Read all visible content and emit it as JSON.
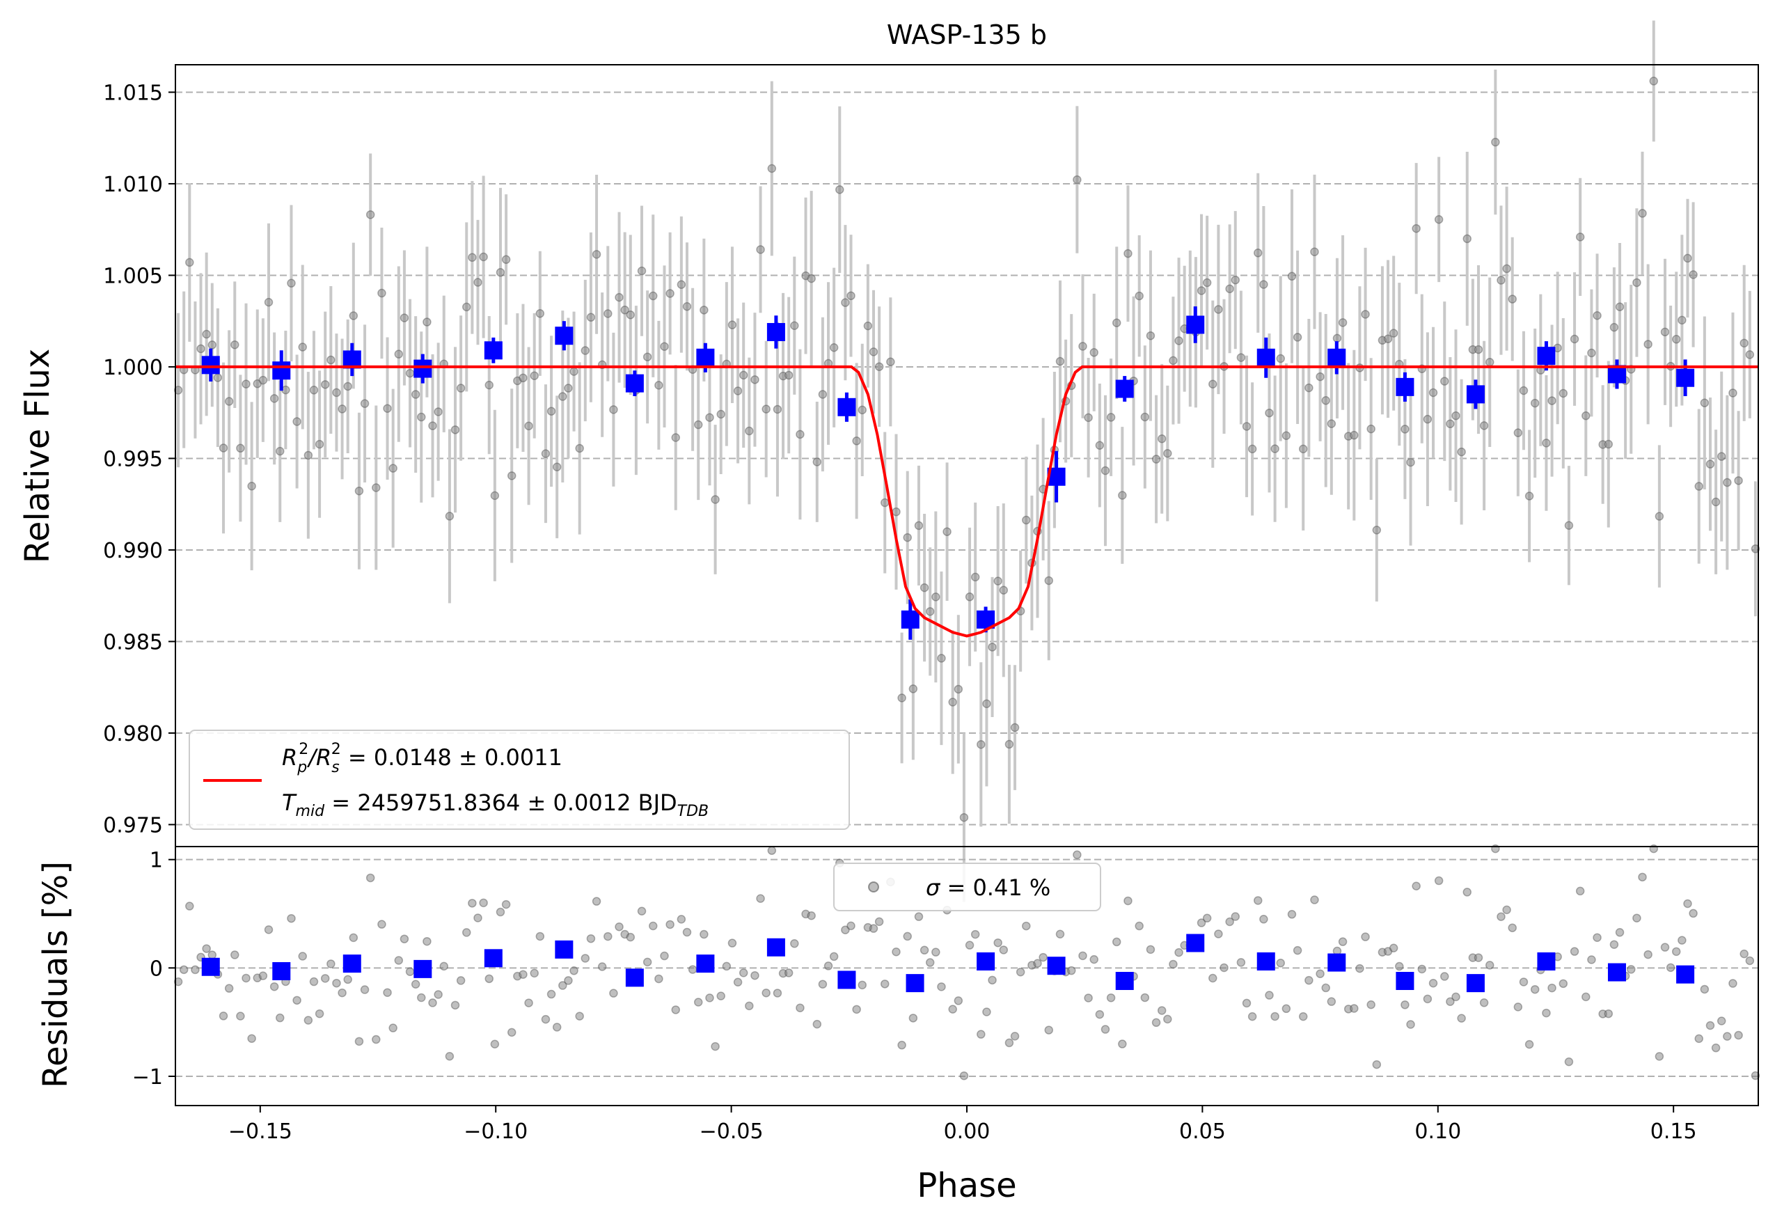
{
  "chart_data": [
    {
      "type": "scatter",
      "title": "WASP-135 b",
      "xlabel": "Phase",
      "ylabel": "Relative Flux",
      "xlim": [
        -0.168,
        0.168
      ],
      "ylim": [
        0.9738,
        1.0165
      ],
      "xticks": [
        -0.15,
        -0.1,
        -0.05,
        0.0,
        0.05,
        0.1,
        0.15
      ],
      "xtick_labels": [
        "−0.15",
        "−0.10",
        "−0.05",
        "0.00",
        "0.05",
        "0.10",
        "0.15"
      ],
      "yticks": [
        0.975,
        0.98,
        0.985,
        0.99,
        0.995,
        1.0,
        1.005,
        1.01,
        1.015
      ],
      "ytick_labels": [
        "0.975",
        "0.980",
        "0.985",
        "0.990",
        "0.995",
        "1.000",
        "1.005",
        "1.010",
        "1.015"
      ],
      "grid": "horizontal dashed",
      "legend": {
        "placement": "lower-left",
        "entries": [
          {
            "label_parts": [
              "R",
              "p",
              "2",
              "/R",
              "s",
              "2",
              " = 0.0148 ± 0.0011"
            ],
            "color": "#ff0000"
          },
          {
            "label_parts": [
              "T",
              "mid",
              " = 2459751.8364 ± 0.0012 BJD",
              "TDB"
            ]
          }
        ]
      },
      "model": {
        "name": "transit model",
        "color": "#ff0000",
        "x": [
          -0.168,
          -0.0245,
          -0.023,
          -0.021,
          -0.019,
          -0.017,
          -0.015,
          -0.013,
          -0.011,
          -0.009,
          -0.006,
          -0.003,
          0.0,
          0.003,
          0.006,
          0.009,
          0.011,
          0.013,
          0.015,
          0.017,
          0.019,
          0.021,
          0.023,
          0.0245,
          0.168
        ],
        "y": [
          1.0,
          1.0,
          0.9997,
          0.9985,
          0.9963,
          0.9935,
          0.9906,
          0.988,
          0.9868,
          0.9863,
          0.9859,
          0.9855,
          0.9853,
          0.9855,
          0.9859,
          0.9863,
          0.9868,
          0.988,
          0.9906,
          0.9935,
          0.9963,
          0.9985,
          0.9997,
          1.0,
          1.0
        ]
      },
      "binned": {
        "name": "binned data",
        "color": "#0000ff",
        "x": [
          -0.1605,
          -0.1455,
          -0.1305,
          -0.1155,
          -0.1005,
          -0.0855,
          -0.0705,
          -0.0555,
          -0.0405,
          -0.0255,
          -0.012,
          0.004,
          0.019,
          0.0335,
          0.0485,
          0.0635,
          0.0785,
          0.093,
          0.108,
          0.123,
          0.138,
          0.1525
        ],
        "y": [
          1.0001,
          0.9998,
          1.0004,
          0.9999,
          1.0009,
          1.0017,
          0.9991,
          1.0005,
          1.0019,
          0.9978,
          0.9862,
          0.9862,
          0.994,
          0.9988,
          1.0023,
          1.0005,
          1.0005,
          0.9989,
          0.9985,
          1.0006,
          0.9996,
          0.9994
        ],
        "yerr": [
          0.0009,
          0.0011,
          0.0009,
          0.0008,
          0.0007,
          0.0008,
          0.0007,
          0.0008,
          0.0009,
          0.0008,
          0.0011,
          0.0007,
          0.0014,
          0.0007,
          0.001,
          0.0011,
          0.0009,
          0.0008,
          0.0008,
          0.0008,
          0.0008,
          0.001
        ]
      },
      "raw": {
        "name": "raw data",
        "color": "#808080",
        "n_points": 280,
        "x_range": [
          -0.168,
          0.168
        ],
        "scatter_sigma": 0.0041,
        "typical_yerr": 0.004
      }
    },
    {
      "type": "scatter",
      "xlabel": "Phase",
      "ylabel": "Residuals [%]",
      "xlim": [
        -0.168,
        0.168
      ],
      "ylim": [
        -1.27,
        1.12
      ],
      "yticks": [
        -1,
        0,
        1
      ],
      "ytick_labels": [
        "−1",
        "0",
        "1"
      ],
      "grid": "horizontal dashed",
      "legend": {
        "placement": "top-center",
        "sigma_symbol": "σ",
        "text": " = 0.41 %"
      },
      "binned": {
        "name": "binned residuals",
        "color": "#0000ff",
        "x": [
          -0.1605,
          -0.1455,
          -0.1305,
          -0.1155,
          -0.1005,
          -0.0855,
          -0.0705,
          -0.0555,
          -0.0405,
          -0.0255,
          -0.011,
          0.004,
          0.019,
          0.0335,
          0.0485,
          0.0635,
          0.0785,
          0.093,
          0.108,
          0.123,
          0.138,
          0.1525
        ],
        "y": [
          0.01,
          -0.03,
          0.04,
          -0.01,
          0.09,
          0.17,
          -0.09,
          0.04,
          0.19,
          -0.11,
          -0.14,
          0.06,
          0.02,
          -0.12,
          0.23,
          0.06,
          0.05,
          -0.12,
          -0.14,
          0.06,
          -0.04,
          -0.06
        ]
      },
      "raw": {
        "name": "raw residuals",
        "color": "#808080",
        "n_points": 280,
        "sigma_percent": 0.41
      }
    }
  ]
}
